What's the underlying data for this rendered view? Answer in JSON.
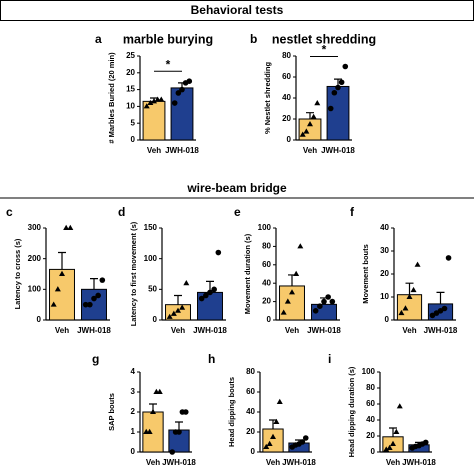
{
  "headers": [
    "Behavioral tests",
    "wire-beam bridge"
  ],
  "chart_data": [
    {
      "type": "bar",
      "label": "a",
      "title": "marble burying",
      "y_label": "# Marbles Buried (20 min)",
      "categories": [
        "Veh",
        "JWH-018"
      ],
      "colors": [
        "#f7c96b",
        "#1f3f8f"
      ],
      "values": [
        11.5,
        15.5
      ],
      "errors": [
        1,
        1.5
      ],
      "points": [
        [
          10,
          11,
          11.5,
          12,
          12
        ],
        [
          11,
          14,
          15,
          17,
          17.5
        ]
      ],
      "ylim": [
        0,
        25
      ],
      "yticks": [
        0,
        5,
        10,
        15,
        20,
        25
      ],
      "significance": "*"
    },
    {
      "type": "bar",
      "label": "b",
      "title": "nestlet shredding",
      "y_label": "% Nestlet shredding",
      "categories": [
        "Veh",
        "JWH-018"
      ],
      "colors": [
        "#f7c96b",
        "#1f3f8f"
      ],
      "values": [
        20,
        51
      ],
      "errors": [
        6,
        7
      ],
      "points": [
        [
          5,
          8,
          15,
          22,
          35
        ],
        [
          30,
          45,
          50,
          55,
          70
        ]
      ],
      "ylim": [
        0,
        80
      ],
      "yticks": [
        0,
        20,
        40,
        60,
        80
      ],
      "significance": "*"
    },
    {
      "type": "bar",
      "label": "c",
      "y_label": "Latency to cross (s)",
      "categories": [
        "Veh",
        "JWH-018"
      ],
      "colors": [
        "#f7c96b",
        "#1f3f8f"
      ],
      "values": [
        165,
        100
      ],
      "errors": [
        55,
        35
      ],
      "points": [
        [
          50,
          100,
          150,
          300,
          300
        ],
        [
          50,
          50,
          70,
          80,
          130
        ]
      ],
      "ylim": [
        0,
        300
      ],
      "yticks": [
        0,
        100,
        200,
        300
      ]
    },
    {
      "type": "bar",
      "label": "d",
      "y_label": "Latency to first movement (s)",
      "categories": [
        "Veh",
        "JWH-018"
      ],
      "colors": [
        "#f7c96b",
        "#1f3f8f"
      ],
      "values": [
        25,
        45
      ],
      "errors": [
        15,
        18
      ],
      "points": [
        [
          5,
          10,
          15,
          20,
          60
        ],
        [
          35,
          40,
          45,
          50,
          110
        ]
      ],
      "ylim": [
        0,
        150
      ],
      "yticks": [
        0,
        50,
        100,
        150
      ]
    },
    {
      "type": "bar",
      "label": "e",
      "y_label": "Movement duration (s)",
      "categories": [
        "Veh",
        "JWH-018"
      ],
      "colors": [
        "#f7c96b",
        "#1f3f8f"
      ],
      "values": [
        37,
        17
      ],
      "errors": [
        12,
        7
      ],
      "points": [
        [
          8,
          20,
          30,
          50,
          80
        ],
        [
          10,
          15,
          20,
          25,
          20
        ]
      ],
      "ylim": [
        0,
        100
      ],
      "yticks": [
        0,
        20,
        40,
        60,
        80,
        100
      ]
    },
    {
      "type": "bar",
      "label": "f",
      "y_label": "Movement bouts",
      "categories": [
        "Veh",
        "JWH-018"
      ],
      "colors": [
        "#f7c96b",
        "#1f3f8f"
      ],
      "values": [
        11,
        7
      ],
      "errors": [
        5,
        5
      ],
      "points": [
        [
          3,
          5,
          10,
          13,
          24
        ],
        [
          2,
          3,
          4,
          5,
          27
        ]
      ],
      "ylim": [
        0,
        40
      ],
      "yticks": [
        0,
        10,
        20,
        30,
        40
      ]
    },
    {
      "type": "bar",
      "label": "g",
      "y_label": "SAP bouts",
      "categories": [
        "Veh",
        "JWH-018"
      ],
      "colors": [
        "#f7c96b",
        "#1f3f8f"
      ],
      "values": [
        2,
        1.1
      ],
      "errors": [
        0.4,
        0.4
      ],
      "points": [
        [
          1,
          1,
          2,
          3,
          3
        ],
        [
          0,
          1,
          1,
          2,
          2
        ]
      ],
      "ylim": [
        0,
        4
      ],
      "yticks": [
        0,
        1,
        2,
        3,
        4
      ]
    },
    {
      "type": "bar",
      "label": "h",
      "y_label": "Head dipping bouts",
      "categories": [
        "Veh",
        "JWH-018"
      ],
      "colors": [
        "#f7c96b",
        "#1f3f8f"
      ],
      "values": [
        23,
        9
      ],
      "errors": [
        9,
        3
      ],
      "points": [
        [
          5,
          8,
          15,
          30,
          50
        ],
        [
          5,
          7,
          8,
          10,
          14
        ]
      ],
      "ylim": [
        0,
        80
      ],
      "yticks": [
        0,
        20,
        40,
        60,
        80
      ]
    },
    {
      "type": "bar",
      "label": "i",
      "y_label": "Head dipping duration (s)",
      "categories": [
        "Veh",
        "JWH-018"
      ],
      "colors": [
        "#f7c96b",
        "#1f3f8f"
      ],
      "values": [
        19,
        9
      ],
      "errors": [
        11,
        3
      ],
      "points": [
        [
          3,
          5,
          10,
          25,
          57
        ],
        [
          5,
          7,
          8,
          10,
          12
        ]
      ],
      "ylim": [
        0,
        100
      ],
      "yticks": [
        0,
        20,
        40,
        60,
        80,
        100
      ]
    }
  ]
}
